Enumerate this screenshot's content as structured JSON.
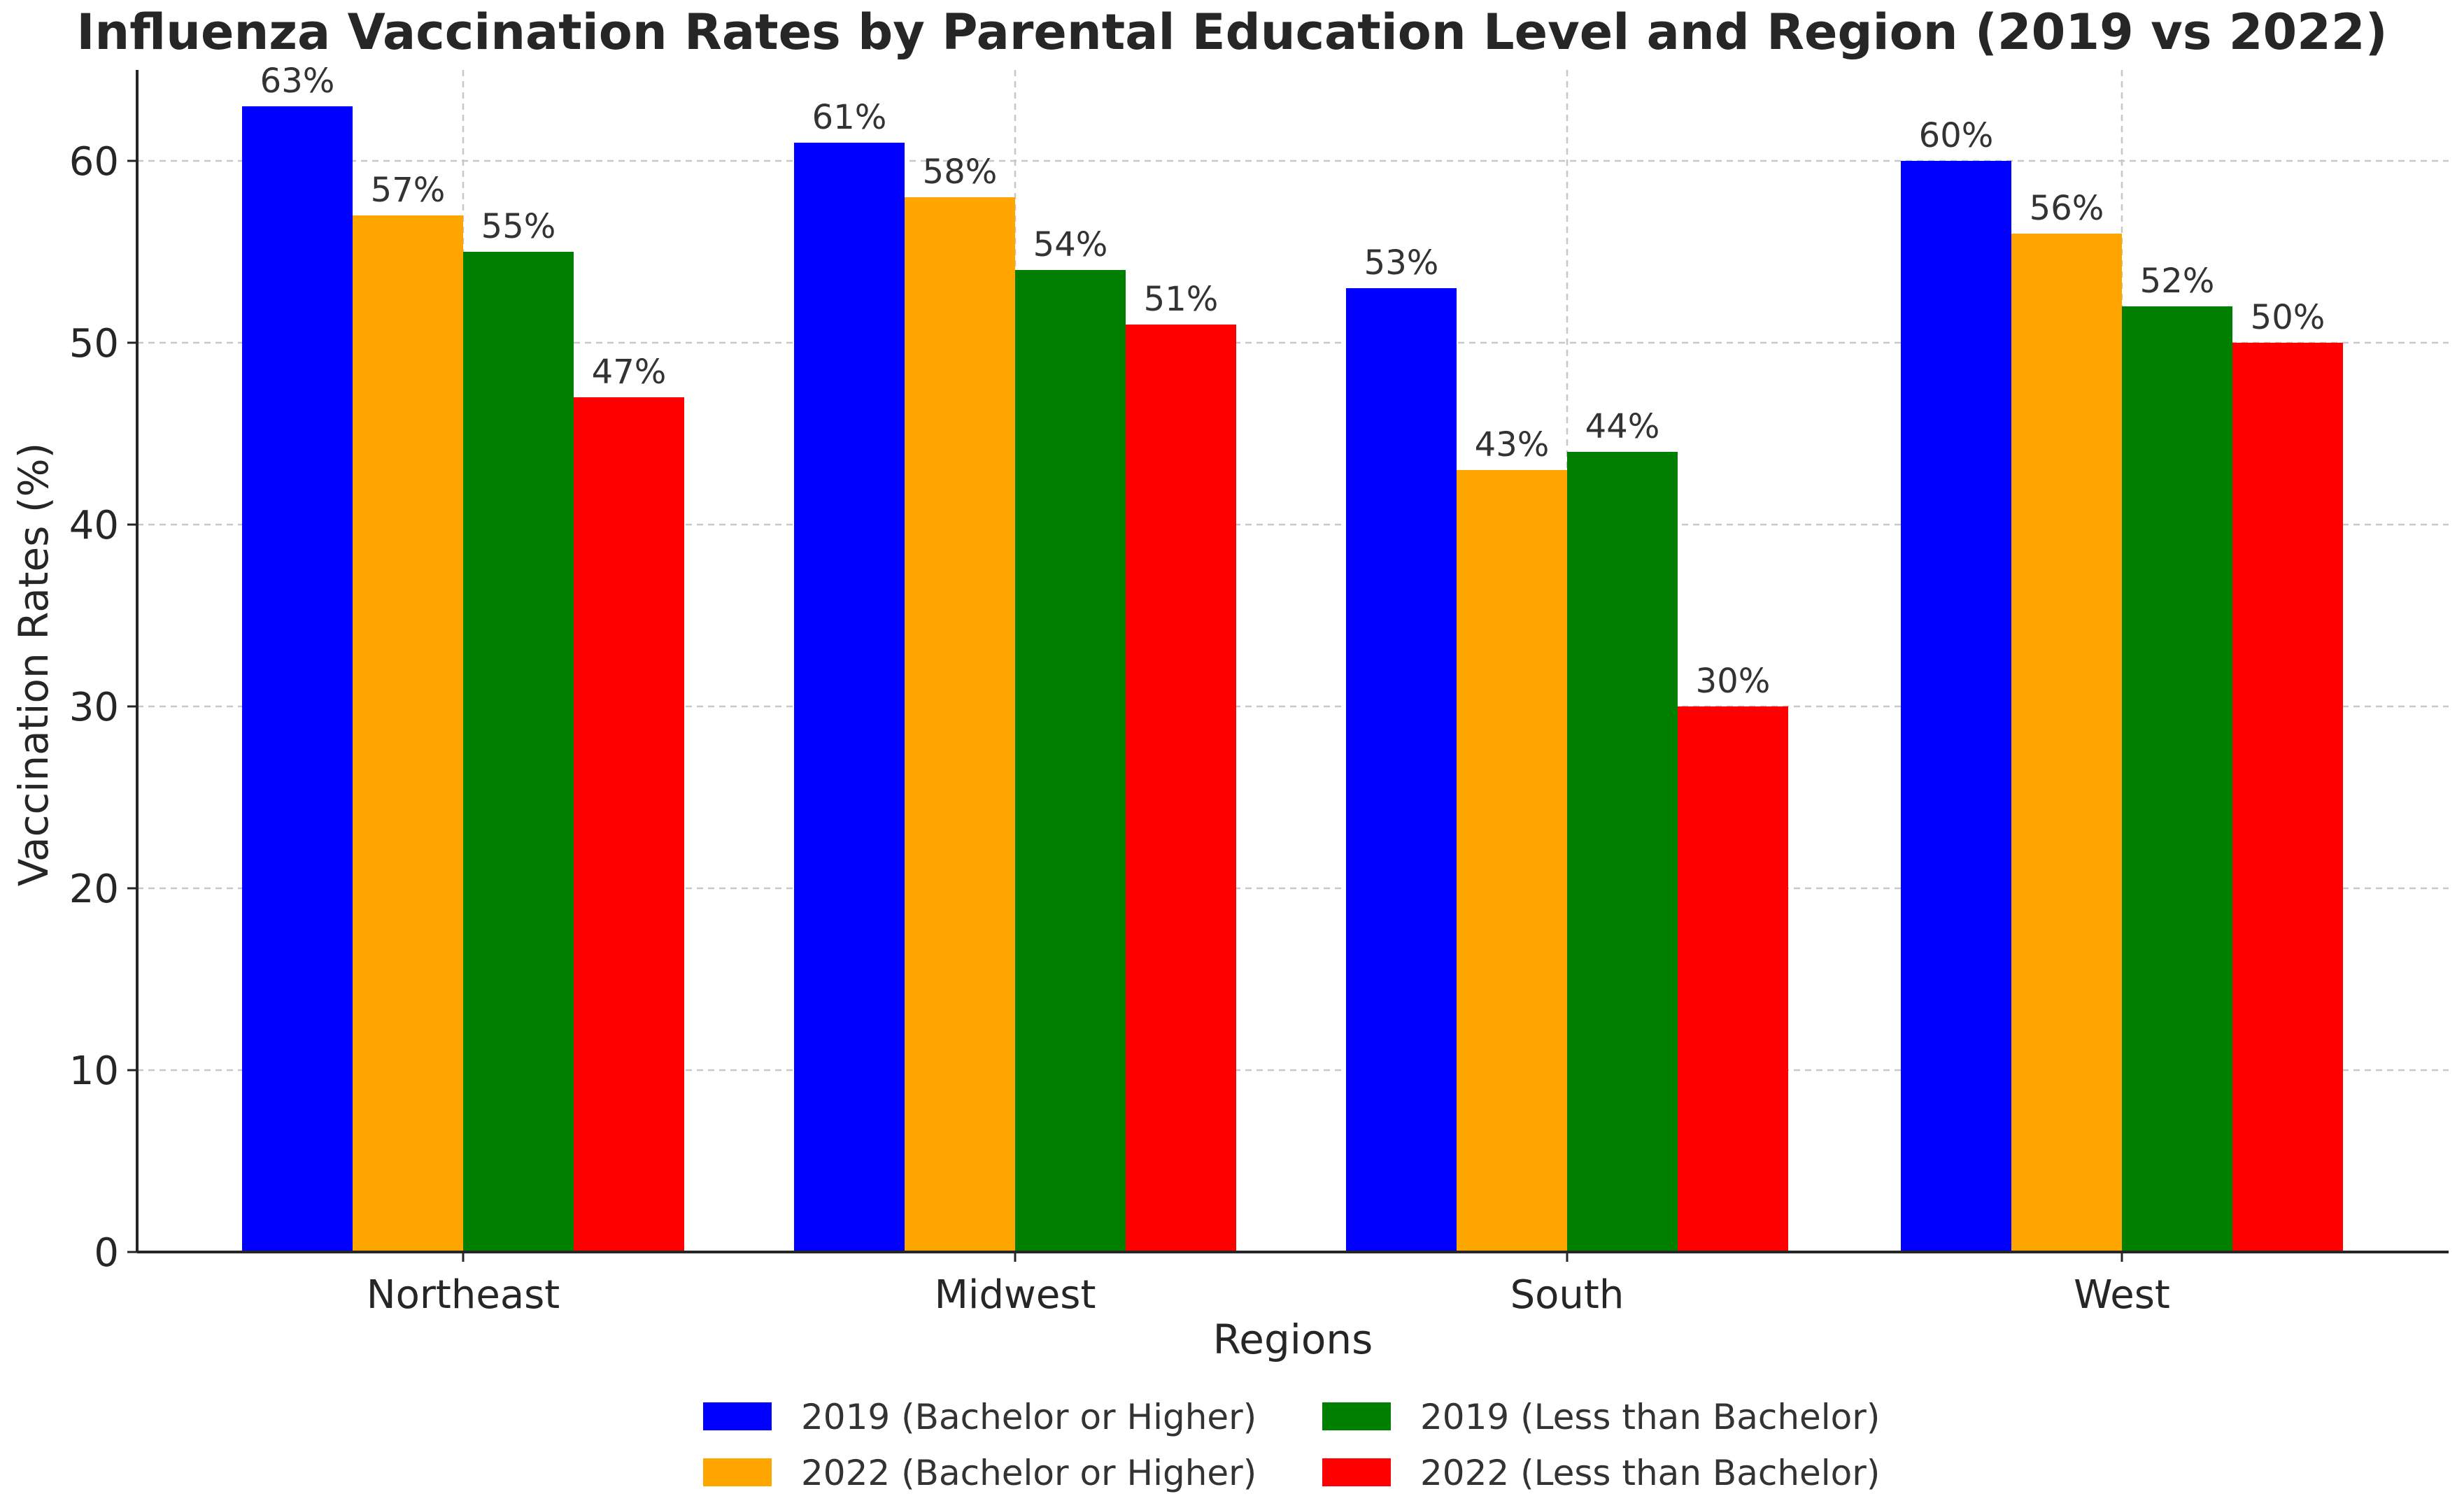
{
  "chart_data": {
    "type": "bar",
    "title": "Influenza Vaccination Rates by Parental Education Level and Region (2019 vs 2022)",
    "xlabel": "Regions",
    "ylabel": "Vaccination Rates (%)",
    "categories": [
      "Northeast",
      "Midwest",
      "South",
      "West"
    ],
    "ylim": [
      0,
      65
    ],
    "yticks": [
      0,
      10,
      20,
      30,
      40,
      50,
      60
    ],
    "grid": true,
    "legend_position": "bottom",
    "series": [
      {
        "name": "2019 (Bachelor or Higher)",
        "color": "#0000ff",
        "values": [
          63,
          61,
          53,
          60
        ],
        "labels": [
          "63%",
          "61%",
          "53%",
          "60%"
        ]
      },
      {
        "name": "2022 (Bachelor or Higher)",
        "color": "#ffa500",
        "values": [
          57,
          58,
          43,
          56
        ],
        "labels": [
          "57%",
          "58%",
          "43%",
          "56%"
        ]
      },
      {
        "name": "2019 (Less than Bachelor)",
        "color": "#008000",
        "values": [
          55,
          54,
          44,
          52
        ],
        "labels": [
          "55%",
          "54%",
          "44%",
          "52%"
        ]
      },
      {
        "name": "2022 (Less than Bachelor)",
        "color": "#ff0000",
        "values": [
          47,
          51,
          30,
          50
        ],
        "labels": [
          "47%",
          "51%",
          "30%",
          "50%"
        ]
      }
    ]
  }
}
